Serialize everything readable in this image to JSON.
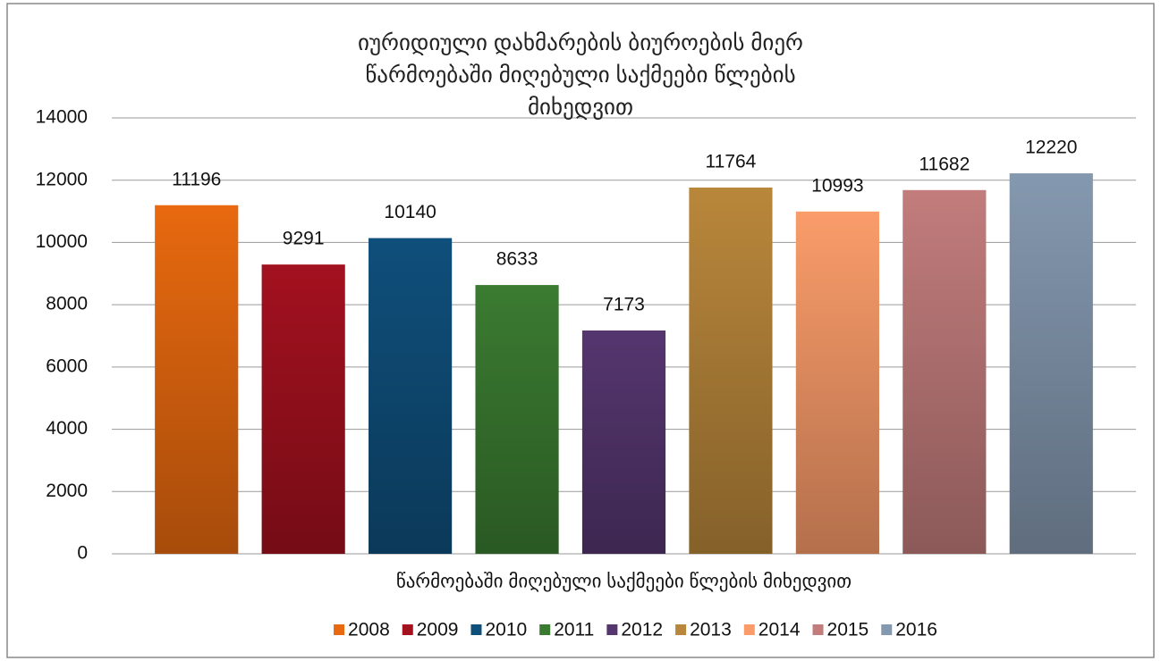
{
  "chart_data": {
    "type": "bar",
    "title": "იურიდიული დახმარების ბიუროების მიერ წარმოებაში მიღებული საქმეები წლების მიხედვით",
    "categories": [
      "წარმოებაში მიღებული საქმეები წლების მიხედვით"
    ],
    "series": [
      {
        "name": "2008",
        "color": "#e8690f",
        "values": [
          11196
        ]
      },
      {
        "name": "2009",
        "color": "#a3111f",
        "values": [
          9291
        ]
      },
      {
        "name": "2010",
        "color": "#0f4f7b",
        "values": [
          10140
        ]
      },
      {
        "name": "2011",
        "color": "#3b7b31",
        "values": [
          8633
        ]
      },
      {
        "name": "2012",
        "color": "#55366f",
        "values": [
          7173
        ]
      },
      {
        "name": "2013",
        "color": "#b9873b",
        "values": [
          11764
        ]
      },
      {
        "name": "2014",
        "color": "#fa9c6a",
        "values": [
          10993
        ]
      },
      {
        "name": "2015",
        "color": "#c27c7c",
        "values": [
          11682
        ]
      },
      {
        "name": "2016",
        "color": "#8498af",
        "values": [
          12220
        ]
      }
    ],
    "ylim": [
      0,
      14000
    ],
    "yticks": [
      0,
      2000,
      4000,
      6000,
      8000,
      10000,
      12000,
      14000
    ],
    "grid": true,
    "legend": "bottom"
  }
}
